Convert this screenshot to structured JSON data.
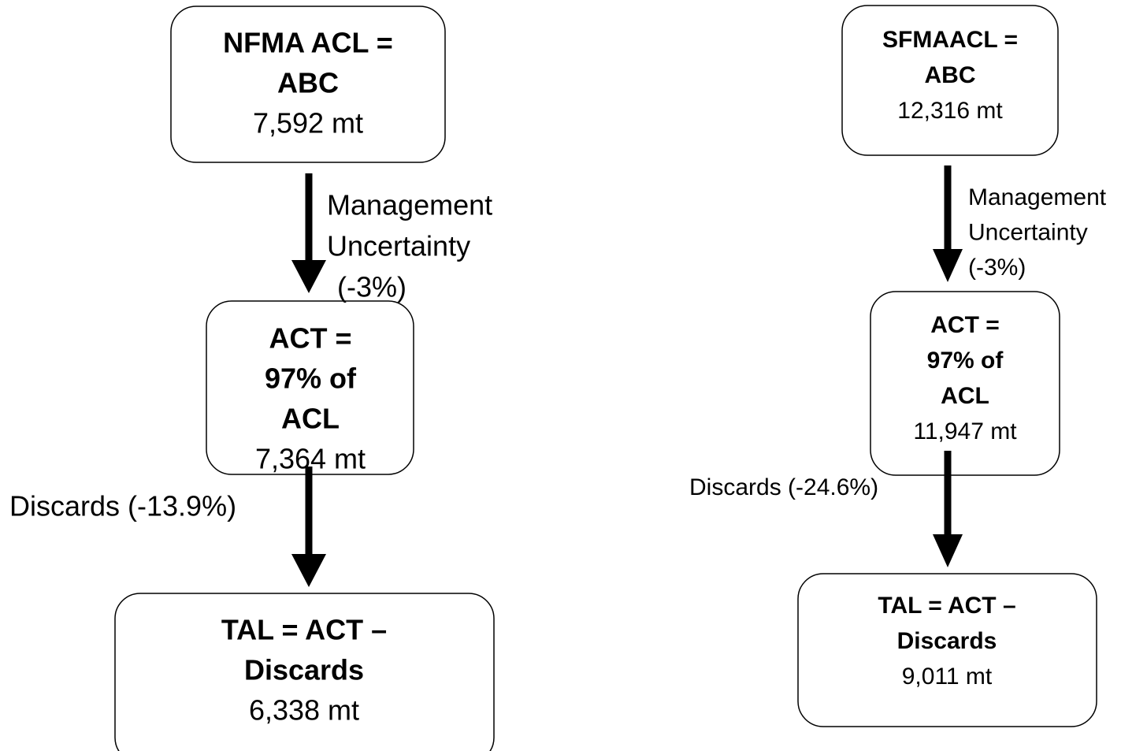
{
  "flows": [
    {
      "nodes": [
        {
          "title": [
            "NFMA ACL =",
            "ABC"
          ],
          "value": "7,592 mt"
        },
        {
          "title": [
            "ACT =",
            "97% of",
            "ACL"
          ],
          "value": "7,364 mt"
        },
        {
          "title": [
            "TAL = ACT –",
            "Discards"
          ],
          "value": "6,338 mt"
        }
      ],
      "edges": [
        {
          "label": [
            "Management",
            "Uncertainty",
            "(-3%)"
          ]
        },
        {
          "label": [
            "Discards (-13.9%)"
          ]
        }
      ]
    },
    {
      "nodes": [
        {
          "title": [
            "SFMAACL =",
            "ABC"
          ],
          "value": "12,316 mt"
        },
        {
          "title": [
            "ACT =",
            "97% of",
            "ACL"
          ],
          "value": "11,947 mt"
        },
        {
          "title": [
            "TAL = ACT –",
            "Discards"
          ],
          "value": "9,011 mt"
        }
      ],
      "edges": [
        {
          "label": [
            "Management",
            "Uncertainty",
            "(-3%)"
          ]
        },
        {
          "label": [
            "Discards (-24.6%)"
          ]
        }
      ]
    }
  ]
}
